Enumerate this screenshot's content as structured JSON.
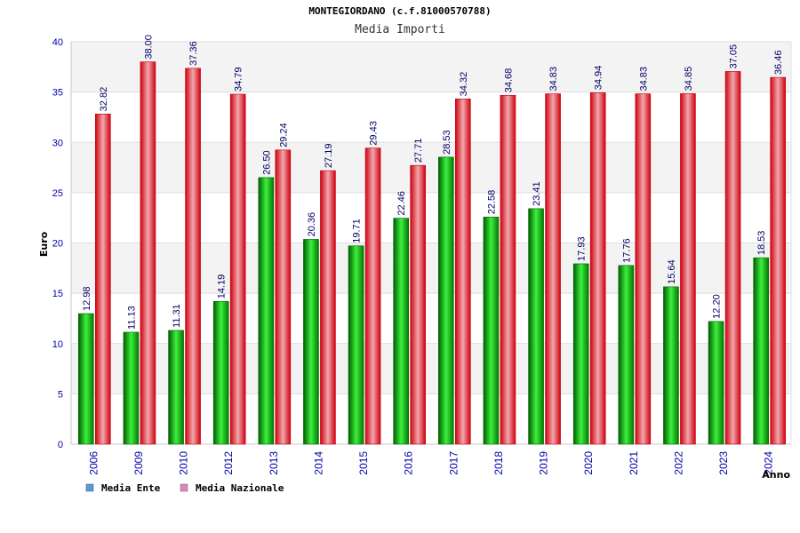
{
  "chart_data": {
    "type": "bar",
    "title": "MONTEGIORDANO (c.f.81000570788)",
    "subtitle": "Media Importi",
    "ylabel": "Euro",
    "xlabel": "Anno",
    "ylim": [
      0,
      40
    ],
    "yticks": [
      0,
      5,
      10,
      15,
      20,
      25,
      30,
      35,
      40
    ],
    "grid": true,
    "legend_position": "bottom-left",
    "categories": [
      "2006",
      "2009",
      "2010",
      "2012",
      "2013",
      "2014",
      "2015",
      "2016",
      "2017",
      "2018",
      "2019",
      "2020",
      "2021",
      "2022",
      "2023",
      "2024"
    ],
    "series": [
      {
        "name": "Media Ente",
        "color": "#00b400",
        "legend_color": "#5b9bd5",
        "values": [
          12.98,
          11.13,
          11.31,
          14.19,
          26.5,
          20.36,
          19.71,
          22.46,
          28.53,
          22.58,
          23.41,
          17.93,
          17.76,
          15.64,
          12.2,
          18.53
        ],
        "labels": [
          "12.98",
          "11.13",
          "11.31",
          "14.19",
          "26.50",
          "20.36",
          "19.71",
          "22.46",
          "28.53",
          "22.58",
          "23.41",
          "17.93",
          "17.76",
          "15.64",
          "12.20",
          "18.53"
        ]
      },
      {
        "name": "Media Nazionale",
        "color": "#e8000e",
        "legend_color": "#d98cb3",
        "values": [
          32.82,
          38.0,
          37.36,
          34.79,
          29.24,
          27.19,
          29.43,
          27.71,
          34.32,
          34.68,
          34.83,
          34.94,
          34.83,
          34.85,
          37.05,
          36.46
        ],
        "labels": [
          "32.82",
          "38.00",
          "37.36",
          "34.79",
          "29.24",
          "27.19",
          "29.43",
          "27.71",
          "34.32",
          "34.68",
          "34.83",
          "34.94",
          "34.83",
          "34.85",
          "37.05",
          "36.46"
        ]
      }
    ]
  }
}
